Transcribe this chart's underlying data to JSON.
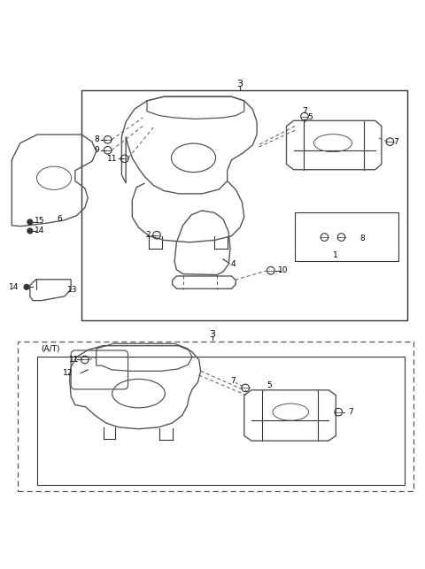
{
  "bg_color": "#ffffff",
  "line_color": "#000000",
  "dashed_color": "#555555",
  "part_color": "#cccccc"
}
